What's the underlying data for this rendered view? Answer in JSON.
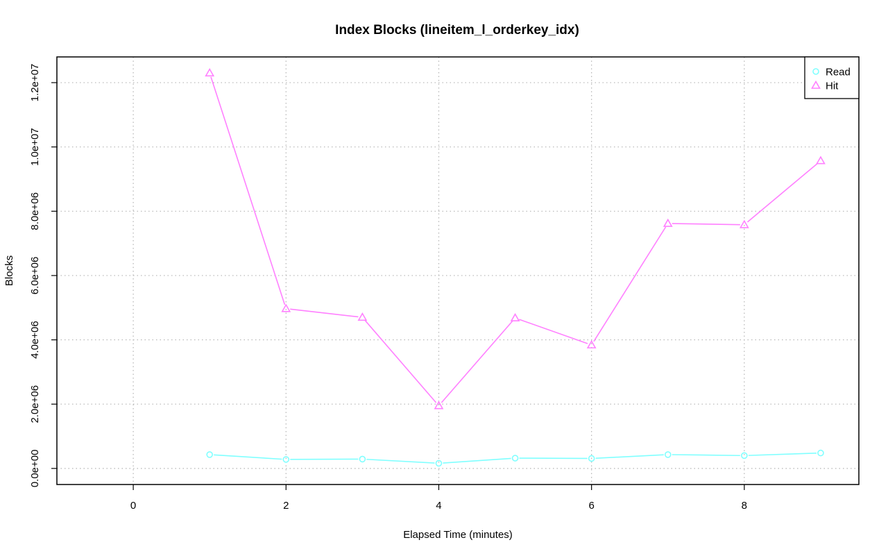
{
  "chart_data": {
    "type": "line",
    "title": "Index Blocks (lineitem_l_orderkey_idx)",
    "xlabel": "Elapsed Time (minutes)",
    "ylabel": "Blocks",
    "xlim": [
      -1,
      9.5
    ],
    "ylim": [
      -500000,
      12800000
    ],
    "x_ticks": [
      0,
      2,
      4,
      6,
      8
    ],
    "x_tick_labels": [
      "0",
      "2",
      "4",
      "6",
      "8"
    ],
    "y_ticks": [
      0,
      2000000,
      4000000,
      6000000,
      8000000,
      10000000,
      12000000
    ],
    "y_tick_labels": [
      "0.0e+00",
      "2.0e+06",
      "4.0e+06",
      "6.0e+06",
      "8.0e+06",
      "1.0e+07",
      "1.2e+07"
    ],
    "grid": true,
    "legend_position": "top-right",
    "x": [
      1,
      2,
      3,
      4,
      5,
      6,
      7,
      8,
      9
    ],
    "series": [
      {
        "name": "Read",
        "color": "#80ffff",
        "marker": "circle",
        "values": [
          430000,
          280000,
          290000,
          160000,
          320000,
          310000,
          430000,
          400000,
          480000
        ]
      },
      {
        "name": "Hit",
        "color": "#ff80ff",
        "marker": "triangle",
        "values": [
          12300000,
          4970000,
          4700000,
          1950000,
          4680000,
          3840000,
          7620000,
          7580000,
          9570000
        ]
      }
    ]
  }
}
